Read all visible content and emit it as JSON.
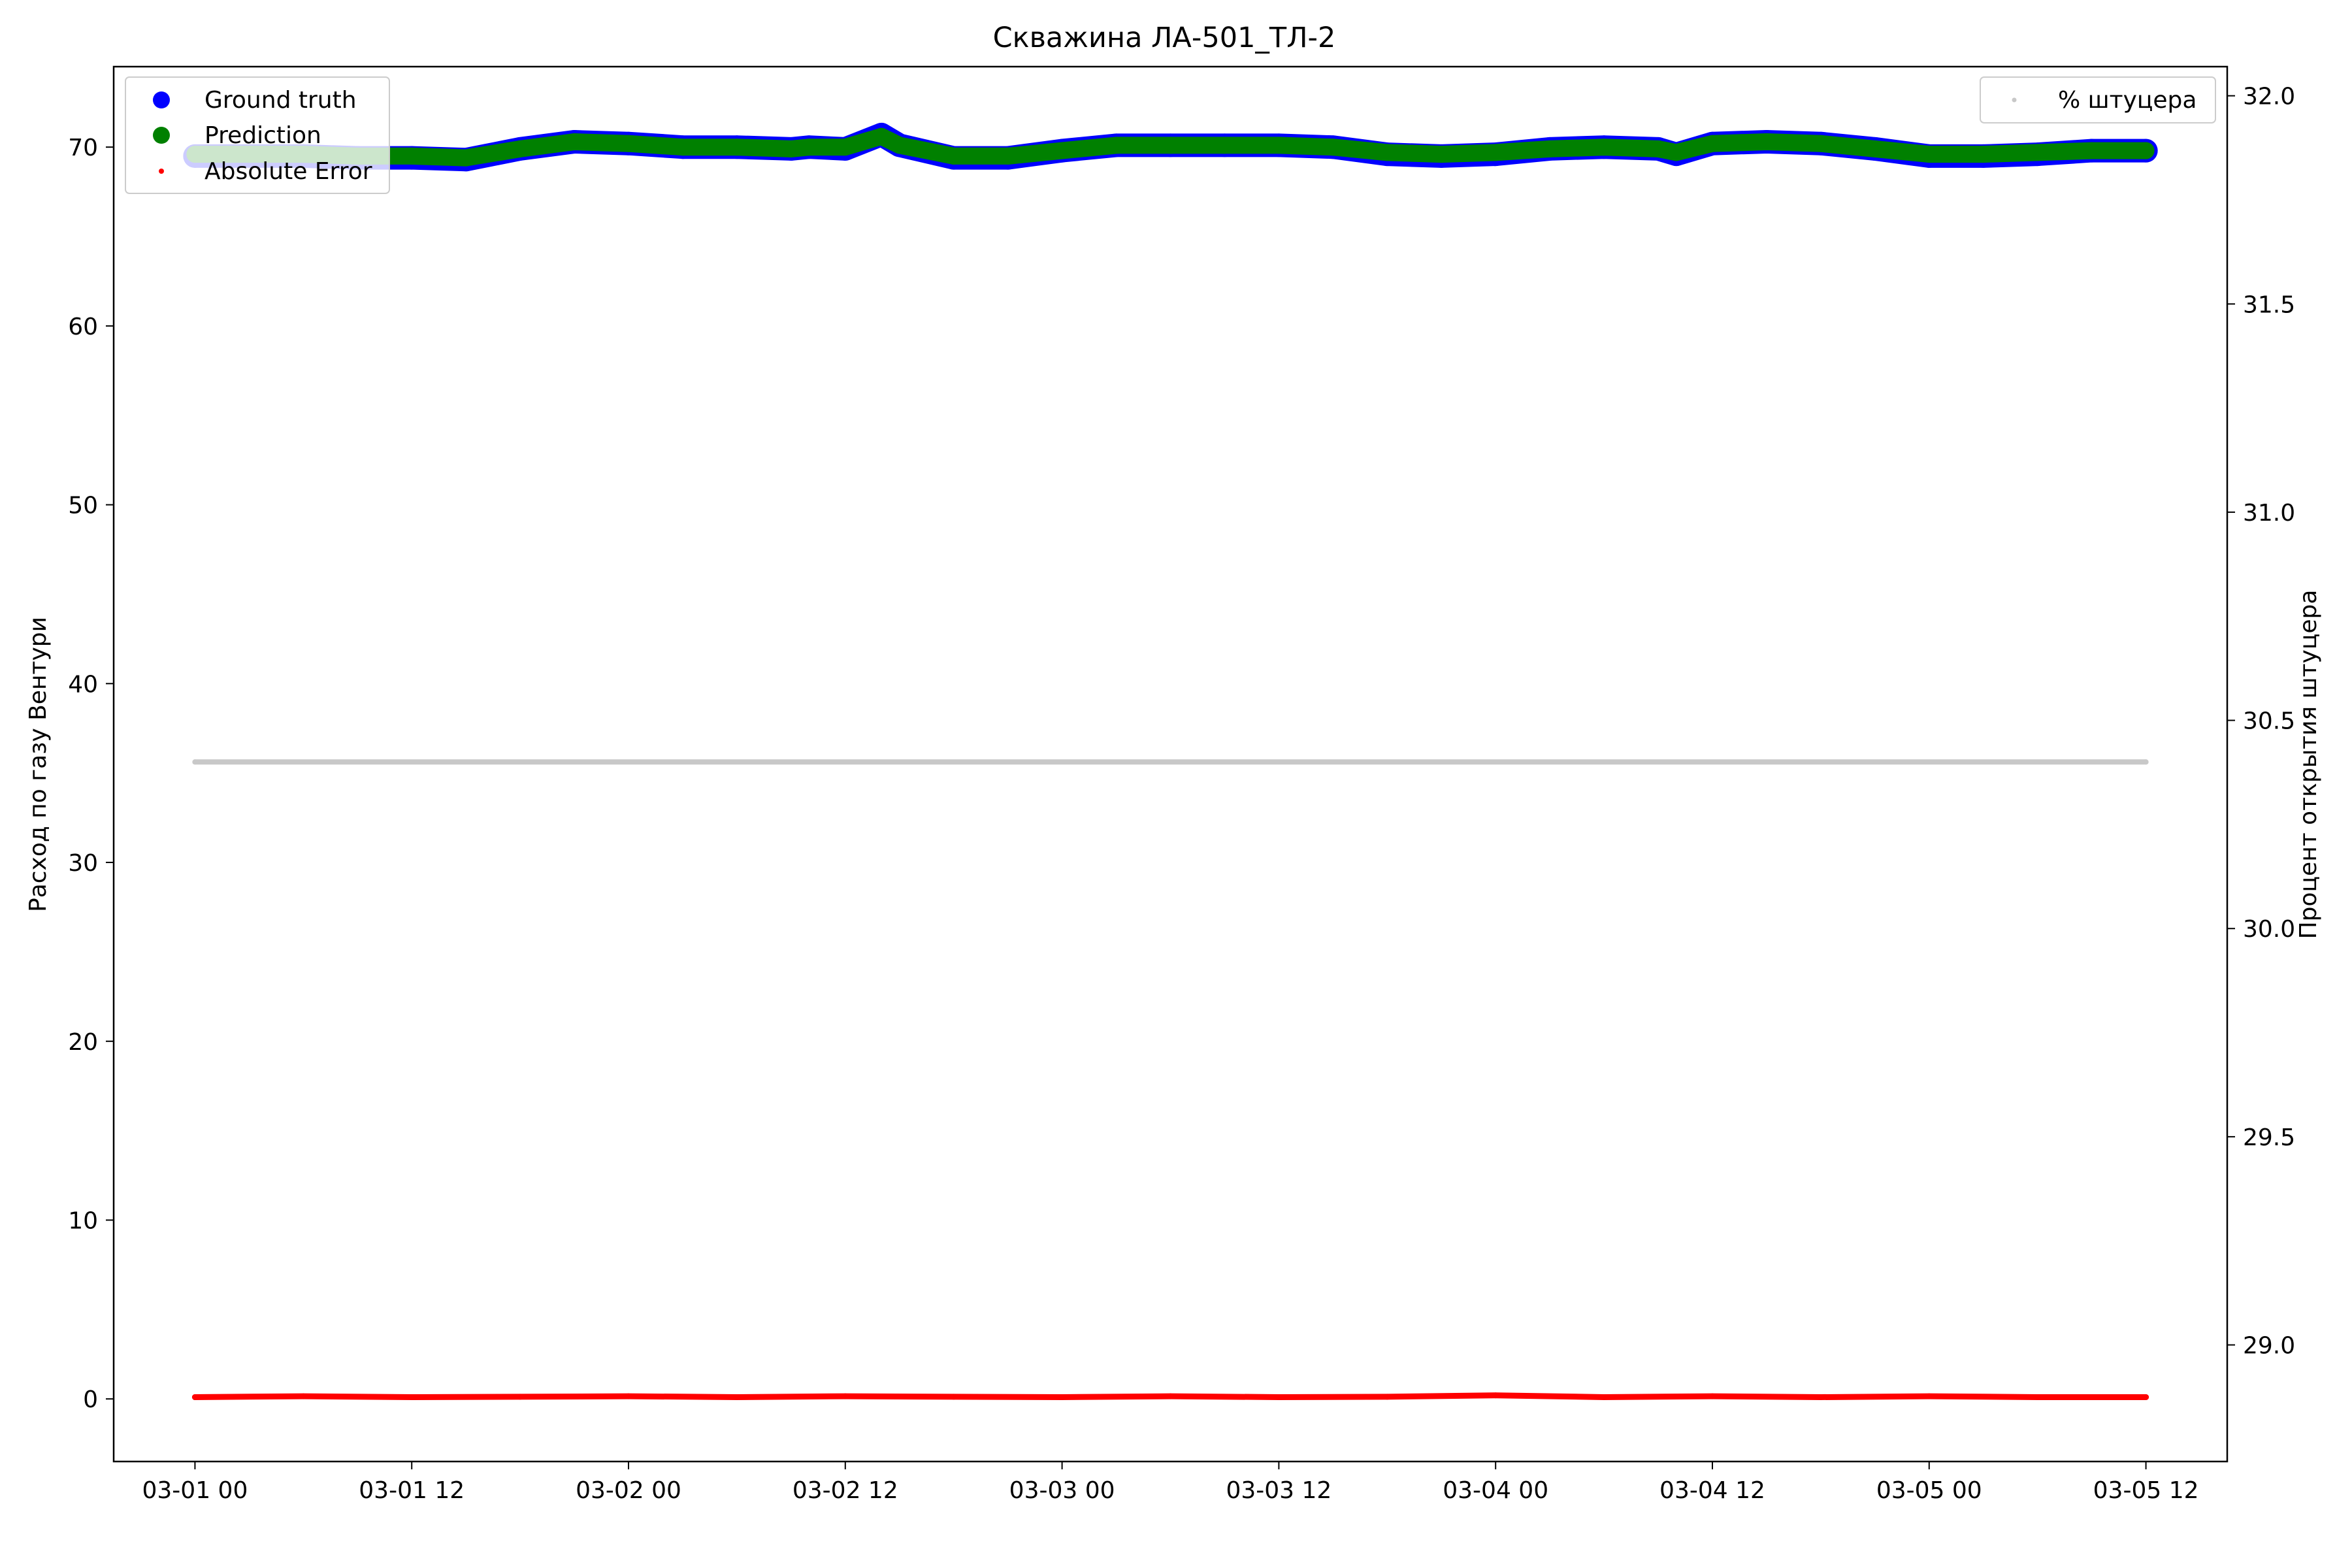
{
  "chart_data": {
    "type": "scatter",
    "title": "Скважина ЛА-501_ТЛ-2",
    "ylabel": "Расход по газу Вентури",
    "y2label": "Процент открытия штуцера",
    "xlabel": "",
    "x_range": [
      "2024-02-29T19:30",
      "2024-03-05T16:30"
    ],
    "x_ticks": [
      {
        "value": "2024-03-01T00:00",
        "label": "03-01 00"
      },
      {
        "value": "2024-03-01T12:00",
        "label": "03-01 12"
      },
      {
        "value": "2024-03-02T00:00",
        "label": "03-02 00"
      },
      {
        "value": "2024-03-02T12:00",
        "label": "03-02 12"
      },
      {
        "value": "2024-03-03T00:00",
        "label": "03-03 00"
      },
      {
        "value": "2024-03-03T12:00",
        "label": "03-03 12"
      },
      {
        "value": "2024-03-04T00:00",
        "label": "03-04 00"
      },
      {
        "value": "2024-03-04T12:00",
        "label": "03-04 12"
      },
      {
        "value": "2024-03-05T00:00",
        "label": "03-05 00"
      },
      {
        "value": "2024-03-05T12:00",
        "label": "03-05 12"
      }
    ],
    "ylim": [
      -3.5,
      74.5
    ],
    "y_ticks": [
      0,
      10,
      20,
      30,
      40,
      50,
      60,
      70
    ],
    "y2lim": [
      28.72,
      32.07
    ],
    "y2_ticks": [
      29.0,
      29.5,
      30.0,
      30.5,
      31.0,
      31.5,
      32.0
    ],
    "y2_tick_labels": [
      "29.0",
      "29.5",
      "30.0",
      "30.5",
      "31.0",
      "31.5",
      "32.0"
    ],
    "legend_left": {
      "placement": "top-left",
      "entries": [
        "Ground truth",
        "Prediction",
        "Absolute Error"
      ]
    },
    "legend_right": {
      "placement": "top-right",
      "entries": [
        "% штуцера"
      ]
    },
    "grid": false,
    "series": [
      {
        "name": "Ground truth",
        "axis": "left",
        "color": "#0000ff",
        "x": [
          "2024-03-01T00:00",
          "2024-03-01T03:00",
          "2024-03-01T06:00",
          "2024-03-01T09:00",
          "2024-03-01T12:00",
          "2024-03-01T15:00",
          "2024-03-01T18:00",
          "2024-03-01T21:00",
          "2024-03-02T00:00",
          "2024-03-02T03:00",
          "2024-03-02T06:00",
          "2024-03-02T09:00",
          "2024-03-02T10:00",
          "2024-03-02T12:00",
          "2024-03-02T14:00",
          "2024-03-02T15:00",
          "2024-03-02T18:00",
          "2024-03-02T21:00",
          "2024-03-03T00:00",
          "2024-03-03T03:00",
          "2024-03-03T06:00",
          "2024-03-03T09:00",
          "2024-03-03T12:00",
          "2024-03-03T15:00",
          "2024-03-03T18:00",
          "2024-03-03T21:00",
          "2024-03-04T00:00",
          "2024-03-04T03:00",
          "2024-03-04T06:00",
          "2024-03-04T09:00",
          "2024-03-04T10:00",
          "2024-03-04T12:00",
          "2024-03-04T15:00",
          "2024-03-04T18:00",
          "2024-03-04T21:00",
          "2024-03-05T00:00",
          "2024-03-05T03:00",
          "2024-03-05T06:00",
          "2024-03-05T09:00",
          "2024-03-05T12:00"
        ],
        "y": [
          69.5,
          69.5,
          69.5,
          69.4,
          69.4,
          69.3,
          69.9,
          70.3,
          70.2,
          70.0,
          70.0,
          69.9,
          70.0,
          69.9,
          70.7,
          70.1,
          69.4,
          69.4,
          69.8,
          70.1,
          70.1,
          70.1,
          70.1,
          70.0,
          69.6,
          69.5,
          69.6,
          69.9,
          70.0,
          69.9,
          69.6,
          70.2,
          70.3,
          70.2,
          69.9,
          69.5,
          69.5,
          69.6,
          69.8,
          69.8
        ]
      },
      {
        "name": "Prediction",
        "axis": "left",
        "color": "#008000",
        "x": [
          "2024-03-01T00:00",
          "2024-03-01T03:00",
          "2024-03-01T06:00",
          "2024-03-01T09:00",
          "2024-03-01T12:00",
          "2024-03-01T15:00",
          "2024-03-01T18:00",
          "2024-03-01T21:00",
          "2024-03-02T00:00",
          "2024-03-02T03:00",
          "2024-03-02T06:00",
          "2024-03-02T09:00",
          "2024-03-02T10:00",
          "2024-03-02T12:00",
          "2024-03-02T14:00",
          "2024-03-02T15:00",
          "2024-03-02T18:00",
          "2024-03-02T21:00",
          "2024-03-03T00:00",
          "2024-03-03T03:00",
          "2024-03-03T06:00",
          "2024-03-03T09:00",
          "2024-03-03T12:00",
          "2024-03-03T15:00",
          "2024-03-03T18:00",
          "2024-03-03T21:00",
          "2024-03-04T00:00",
          "2024-03-04T03:00",
          "2024-03-04T06:00",
          "2024-03-04T09:00",
          "2024-03-04T10:00",
          "2024-03-04T12:00",
          "2024-03-04T15:00",
          "2024-03-04T18:00",
          "2024-03-04T21:00",
          "2024-03-05T00:00",
          "2024-03-05T03:00",
          "2024-03-05T06:00",
          "2024-03-05T09:00",
          "2024-03-05T12:00"
        ],
        "y": [
          69.6,
          69.6,
          69.6,
          69.5,
          69.5,
          69.4,
          69.9,
          70.3,
          70.2,
          70.0,
          70.0,
          69.9,
          70.0,
          70.0,
          70.6,
          70.1,
          69.5,
          69.5,
          69.8,
          70.1,
          70.1,
          70.1,
          70.1,
          70.0,
          69.7,
          69.6,
          69.7,
          69.9,
          70.0,
          69.9,
          69.7,
          70.2,
          70.3,
          70.2,
          69.9,
          69.6,
          69.6,
          69.7,
          69.8,
          69.8
        ]
      },
      {
        "name": "Absolute Error",
        "axis": "left",
        "color": "#ff0000",
        "x": [
          "2024-03-01T00:00",
          "2024-03-01T06:00",
          "2024-03-01T12:00",
          "2024-03-01T18:00",
          "2024-03-02T00:00",
          "2024-03-02T06:00",
          "2024-03-02T12:00",
          "2024-03-02T18:00",
          "2024-03-03T00:00",
          "2024-03-03T06:00",
          "2024-03-03T12:00",
          "2024-03-03T18:00",
          "2024-03-04T00:00",
          "2024-03-04T06:00",
          "2024-03-04T12:00",
          "2024-03-04T18:00",
          "2024-03-05T00:00",
          "2024-03-05T06:00",
          "2024-03-05T12:00"
        ],
        "y": [
          0.1,
          0.15,
          0.1,
          0.12,
          0.15,
          0.1,
          0.15,
          0.12,
          0.1,
          0.15,
          0.1,
          0.12,
          0.2,
          0.1,
          0.15,
          0.1,
          0.15,
          0.1,
          0.1
        ]
      },
      {
        "name": "% штуцера",
        "axis": "right",
        "color": "#c8c8c8",
        "x": [
          "2024-03-01T00:00",
          "2024-03-05T12:00"
        ],
        "y": [
          30.4,
          30.4
        ]
      }
    ]
  }
}
